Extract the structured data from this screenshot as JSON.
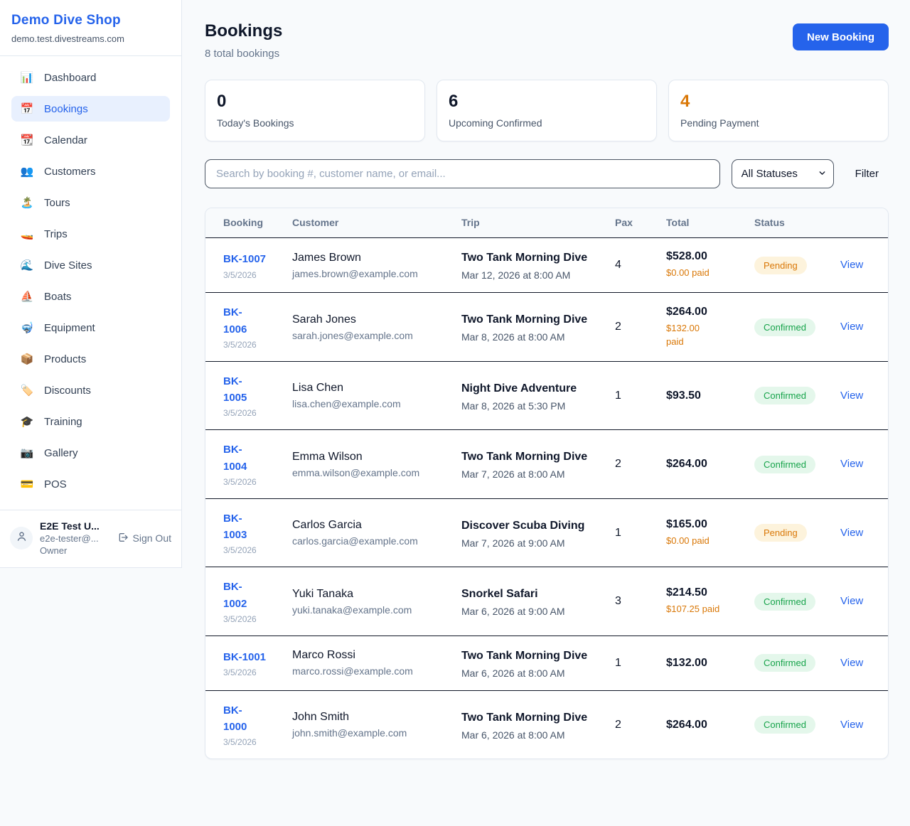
{
  "colors": {
    "accent_blue": "#2563eb",
    "pending_orange": "#d97706",
    "confirmed_green": "#16a34a",
    "page_bg": "#f8fafc"
  },
  "sidebar": {
    "brand": "Demo Dive Shop",
    "domain": "demo.test.divestreams.com",
    "items": [
      {
        "icon": "📊",
        "label": "Dashboard",
        "active": false
      },
      {
        "icon": "📅",
        "label": "Bookings",
        "active": true
      },
      {
        "icon": "📆",
        "label": "Calendar",
        "active": false
      },
      {
        "icon": "👥",
        "label": "Customers",
        "active": false
      },
      {
        "icon": "🏝️",
        "label": "Tours",
        "active": false
      },
      {
        "icon": "🚤",
        "label": "Trips",
        "active": false
      },
      {
        "icon": "🌊",
        "label": "Dive Sites",
        "active": false
      },
      {
        "icon": "⛵",
        "label": "Boats",
        "active": false
      },
      {
        "icon": "🤿",
        "label": "Equipment",
        "active": false
      },
      {
        "icon": "📦",
        "label": "Products",
        "active": false
      },
      {
        "icon": "🏷️",
        "label": "Discounts",
        "active": false
      },
      {
        "icon": "🎓",
        "label": "Training",
        "active": false
      },
      {
        "icon": "📷",
        "label": "Gallery",
        "active": false
      },
      {
        "icon": "💳",
        "label": "POS",
        "active": false
      }
    ],
    "user": {
      "name": "E2E Test U...",
      "email": "e2e-tester@...",
      "role": "Owner",
      "signout_label": "Sign Out"
    }
  },
  "header": {
    "title": "Bookings",
    "subtitle": "8 total bookings",
    "new_booking_label": "New Booking"
  },
  "stats": [
    {
      "value": "0",
      "label": "Today's Bookings",
      "accent": false
    },
    {
      "value": "6",
      "label": "Upcoming Confirmed",
      "accent": false
    },
    {
      "value": "4",
      "label": "Pending Payment",
      "accent": true
    }
  ],
  "filters": {
    "search_placeholder": "Search by booking #, customer name, or email...",
    "search_value": "",
    "status_selected": "All Statuses",
    "filter_label": "Filter"
  },
  "table": {
    "columns": [
      "Booking",
      "Customer",
      "Trip",
      "Pax",
      "Total",
      "Status",
      ""
    ],
    "rows": [
      {
        "id": "BK-1007",
        "date": "3/5/2026",
        "customer_name": "James Brown",
        "customer_email": "james.brown@example.com",
        "trip_name": "Two Tank Morning Dive",
        "trip_datetime": "Mar 12, 2026 at 8:00 AM",
        "pax": "4",
        "total": "$528.00",
        "paid": "$0.00 paid",
        "status": "Pending",
        "status_type": "pending",
        "action": "View"
      },
      {
        "id": "BK-\n1006",
        "date": "3/5/2026",
        "customer_name": "Sarah Jones",
        "customer_email": "sarah.jones@example.com",
        "trip_name": "Two Tank Morning Dive",
        "trip_datetime": "Mar 8, 2026 at 8:00 AM",
        "pax": "2",
        "total": "$264.00",
        "paid": "$132.00\npaid",
        "status": "Confirmed",
        "status_type": "confirmed",
        "action": "View"
      },
      {
        "id": "BK-\n1005",
        "date": "3/5/2026",
        "customer_name": "Lisa Chen",
        "customer_email": "lisa.chen@example.com",
        "trip_name": "Night Dive Adventure",
        "trip_datetime": "Mar 8, 2026 at 5:30 PM",
        "pax": "1",
        "total": "$93.50",
        "paid": "",
        "status": "Confirmed",
        "status_type": "confirmed",
        "action": "View"
      },
      {
        "id": "BK-\n1004",
        "date": "3/5/2026",
        "customer_name": "Emma Wilson",
        "customer_email": "emma.wilson@example.com",
        "trip_name": "Two Tank Morning Dive",
        "trip_datetime": "Mar 7, 2026 at 8:00 AM",
        "pax": "2",
        "total": "$264.00",
        "paid": "",
        "status": "Confirmed",
        "status_type": "confirmed",
        "action": "View"
      },
      {
        "id": "BK-\n1003",
        "date": "3/5/2026",
        "customer_name": "Carlos Garcia",
        "customer_email": "carlos.garcia@example.com",
        "trip_name": "Discover Scuba Diving",
        "trip_datetime": "Mar 7, 2026 at 9:00 AM",
        "pax": "1",
        "total": "$165.00",
        "paid": "$0.00 paid",
        "status": "Pending",
        "status_type": "pending",
        "action": "View"
      },
      {
        "id": "BK-\n1002",
        "date": "3/5/2026",
        "customer_name": "Yuki Tanaka",
        "customer_email": "yuki.tanaka@example.com",
        "trip_name": "Snorkel Safari",
        "trip_datetime": "Mar 6, 2026 at 9:00 AM",
        "pax": "3",
        "total": "$214.50",
        "paid": "$107.25 paid",
        "status": "Confirmed",
        "status_type": "confirmed",
        "action": "View"
      },
      {
        "id": "BK-1001",
        "date": "3/5/2026",
        "customer_name": "Marco Rossi",
        "customer_email": "marco.rossi@example.com",
        "trip_name": "Two Tank Morning Dive",
        "trip_datetime": "Mar 6, 2026 at 8:00 AM",
        "pax": "1",
        "total": "$132.00",
        "paid": "",
        "status": "Confirmed",
        "status_type": "confirmed",
        "action": "View"
      },
      {
        "id": "BK-\n1000",
        "date": "3/5/2026",
        "customer_name": "John Smith",
        "customer_email": "john.smith@example.com",
        "trip_name": "Two Tank Morning Dive",
        "trip_datetime": "Mar 6, 2026 at 8:00 AM",
        "pax": "2",
        "total": "$264.00",
        "paid": "",
        "status": "Confirmed",
        "status_type": "confirmed",
        "action": "View"
      }
    ]
  }
}
